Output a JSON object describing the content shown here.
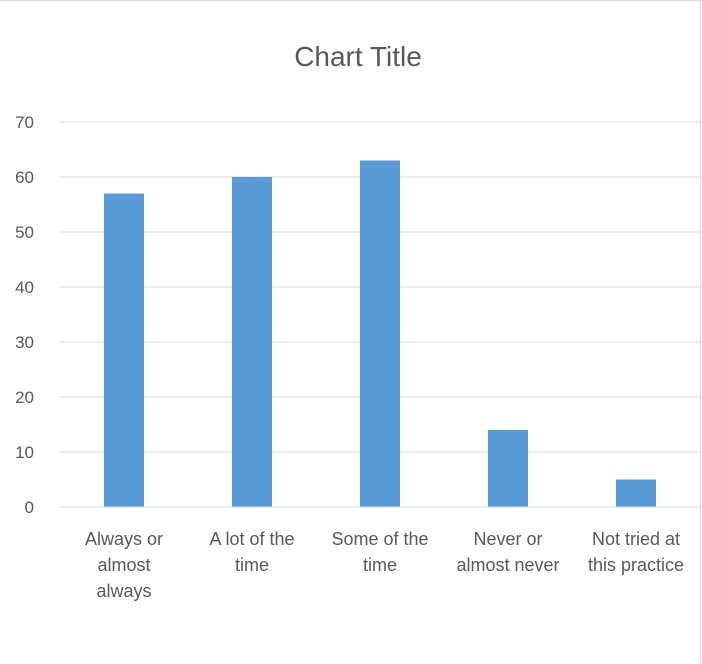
{
  "chart_data": {
    "type": "bar",
    "title": "Chart Title",
    "xlabel": "",
    "ylabel": "",
    "categories": [
      [
        "Always or",
        "almost",
        "always"
      ],
      [
        "A lot of the",
        "time"
      ],
      [
        "Some of the",
        "time"
      ],
      [
        "Never or",
        "almost never"
      ],
      [
        "Not tried at",
        "this practice"
      ]
    ],
    "values": [
      57,
      60,
      63,
      14,
      5
    ],
    "ylim": [
      0,
      70
    ],
    "yticks": [
      0,
      10,
      20,
      30,
      40,
      50,
      60,
      70
    ],
    "grid": true,
    "legend": "none",
    "bar_color": "#5b9bd5",
    "grid_color": "#d9d9d9",
    "text_color": "#595959"
  }
}
